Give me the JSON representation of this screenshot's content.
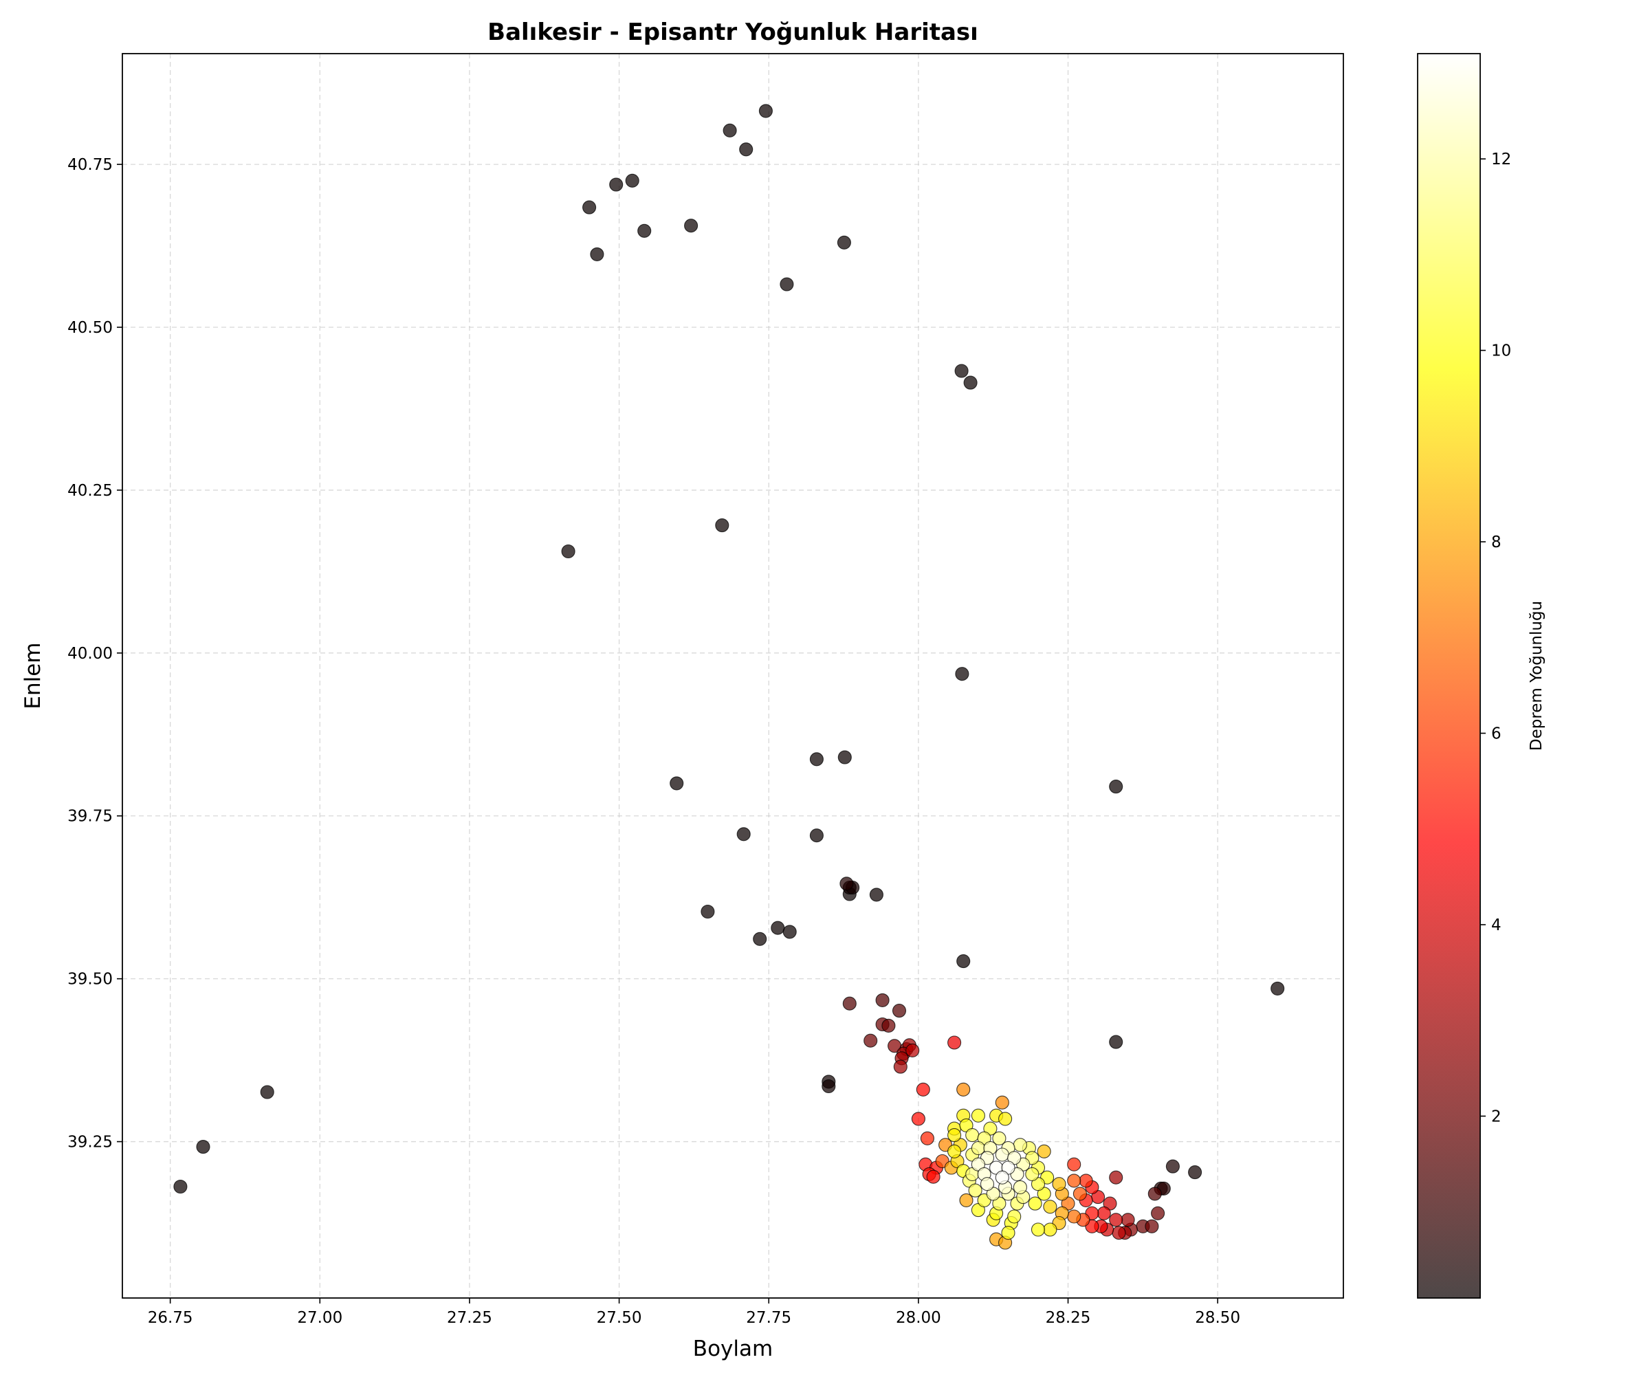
{
  "chart_data": {
    "type": "scatter",
    "title": "Balıkesir - Episantr Yoğunluk Haritası",
    "xlabel": "Boylam",
    "ylabel": "Enlem",
    "xlim": [
      26.67,
      28.71
    ],
    "ylim": [
      39.01,
      40.92
    ],
    "xticks": [
      "26.75",
      "27.00",
      "27.25",
      "27.50",
      "27.75",
      "28.00",
      "28.25",
      "28.50"
    ],
    "yticks": [
      "39.25",
      "39.50",
      "39.75",
      "40.00",
      "40.25",
      "40.50",
      "40.75"
    ],
    "grid": true,
    "colorbar": {
      "label": "Deprem Yoğunluğu",
      "min": 0.1,
      "max": 13.1,
      "ticks": [
        "2",
        "4",
        "6",
        "8",
        "10",
        "12"
      ],
      "colormap": "hot",
      "colors": [
        "#0a0000",
        "#d60000",
        "#ff7300",
        "#ffff00",
        "#ffffff"
      ]
    },
    "points": [
      [
        27.745,
        40.832,
        0.1
      ],
      [
        27.685,
        40.802,
        0.1
      ],
      [
        27.712,
        40.773,
        0.1
      ],
      [
        27.522,
        40.725,
        0.1
      ],
      [
        27.495,
        40.719,
        0.1
      ],
      [
        27.45,
        40.684,
        0.1
      ],
      [
        27.62,
        40.656,
        0.1
      ],
      [
        27.542,
        40.648,
        0.1
      ],
      [
        27.876,
        40.63,
        0.1
      ],
      [
        27.463,
        40.612,
        0.1
      ],
      [
        27.78,
        40.566,
        0.1
      ],
      [
        28.072,
        40.433,
        0.1
      ],
      [
        28.087,
        40.415,
        0.1
      ],
      [
        27.672,
        40.196,
        0.1
      ],
      [
        27.415,
        40.156,
        0.1
      ],
      [
        28.073,
        39.968,
        0.1
      ],
      [
        27.877,
        39.84,
        0.1
      ],
      [
        27.83,
        39.837,
        0.1
      ],
      [
        27.596,
        39.8,
        0.1
      ],
      [
        28.33,
        39.795,
        0.1
      ],
      [
        27.708,
        39.722,
        0.1
      ],
      [
        27.83,
        39.72,
        0.1
      ],
      [
        27.88,
        39.646,
        0.5
      ],
      [
        27.885,
        39.64,
        0.3
      ],
      [
        27.89,
        39.64,
        0.3
      ],
      [
        27.885,
        39.63,
        0.1
      ],
      [
        27.93,
        39.629,
        0.1
      ],
      [
        27.648,
        39.603,
        0.1
      ],
      [
        27.765,
        39.578,
        0.1
      ],
      [
        27.785,
        39.572,
        0.1
      ],
      [
        27.735,
        39.561,
        0.1
      ],
      [
        28.075,
        39.527,
        0.1
      ],
      [
        28.6,
        39.485,
        0.1
      ],
      [
        27.94,
        39.467,
        1.5
      ],
      [
        27.885,
        39.462,
        1.5
      ],
      [
        27.968,
        39.451,
        1.5
      ],
      [
        27.94,
        39.43,
        2.0
      ],
      [
        27.95,
        39.428,
        2.0
      ],
      [
        27.92,
        39.405,
        2.0
      ],
      [
        28.33,
        39.403,
        0.1
      ],
      [
        28.06,
        39.402,
        4.5
      ],
      [
        27.96,
        39.397,
        2.5
      ],
      [
        27.985,
        39.398,
        3.0
      ],
      [
        27.99,
        39.39,
        3.5
      ],
      [
        27.975,
        39.385,
        3.0
      ],
      [
        27.98,
        39.392,
        2.5
      ],
      [
        27.972,
        39.378,
        3.0
      ],
      [
        27.97,
        39.365,
        3.0
      ],
      [
        27.85,
        39.342,
        0.2
      ],
      [
        27.85,
        39.335,
        0.2
      ],
      [
        26.912,
        39.326,
        0.1
      ],
      [
        28.008,
        39.33,
        5.0
      ],
      [
        28.075,
        39.33,
        7.5
      ],
      [
        28.14,
        39.31,
        7.5
      ],
      [
        28.13,
        39.29,
        9.5
      ],
      [
        28.145,
        39.285,
        9.5
      ],
      [
        28.075,
        39.29,
        9.5
      ],
      [
        28.1,
        39.29,
        10
      ],
      [
        28.0,
        39.285,
        5.0
      ],
      [
        28.06,
        39.27,
        9.5
      ],
      [
        28.08,
        39.275,
        10
      ],
      [
        28.12,
        39.27,
        10.5
      ],
      [
        28.06,
        39.26,
        9.5
      ],
      [
        28.09,
        39.26,
        11
      ],
      [
        28.11,
        39.255,
        11
      ],
      [
        28.135,
        39.255,
        11.5
      ],
      [
        28.015,
        39.255,
        5.5
      ],
      [
        28.045,
        39.245,
        7.5
      ],
      [
        28.07,
        39.245,
        9
      ],
      [
        28.1,
        39.24,
        11.5
      ],
      [
        28.12,
        39.24,
        12
      ],
      [
        28.15,
        39.24,
        12
      ],
      [
        28.17,
        39.245,
        11.5
      ],
      [
        28.185,
        39.24,
        11
      ],
      [
        28.21,
        39.235,
        8.5
      ],
      [
        28.06,
        39.235,
        9.5
      ],
      [
        28.09,
        39.23,
        11
      ],
      [
        28.115,
        39.225,
        12.5
      ],
      [
        28.14,
        39.23,
        12.5
      ],
      [
        28.16,
        39.225,
        12.5
      ],
      [
        28.19,
        39.225,
        11
      ],
      [
        28.04,
        39.22,
        6.5
      ],
      [
        28.065,
        39.22,
        9
      ],
      [
        28.1,
        39.215,
        12.5
      ],
      [
        28.13,
        39.21,
        13
      ],
      [
        28.15,
        39.21,
        13
      ],
      [
        28.175,
        39.215,
        12
      ],
      [
        28.2,
        39.21,
        10.5
      ],
      [
        28.012,
        39.215,
        5.0
      ],
      [
        28.03,
        39.21,
        5.0
      ],
      [
        28.055,
        39.21,
        8
      ],
      [
        28.075,
        39.205,
        10
      ],
      [
        28.09,
        39.2,
        11.5
      ],
      [
        28.11,
        39.2,
        12.5
      ],
      [
        28.14,
        39.195,
        13
      ],
      [
        28.165,
        39.2,
        12.5
      ],
      [
        28.19,
        39.2,
        11
      ],
      [
        28.215,
        39.195,
        10
      ],
      [
        28.26,
        39.215,
        5.5
      ],
      [
        28.018,
        39.2,
        5.0
      ],
      [
        28.025,
        39.196,
        5.0
      ],
      [
        28.085,
        39.19,
        11
      ],
      [
        28.115,
        39.185,
        12.5
      ],
      [
        28.145,
        39.18,
        12.5
      ],
      [
        28.17,
        39.18,
        12
      ],
      [
        28.2,
        39.185,
        10.5
      ],
      [
        28.235,
        39.185,
        8.5
      ],
      [
        28.26,
        39.19,
        6.5
      ],
      [
        28.28,
        39.19,
        5.5
      ],
      [
        28.095,
        39.175,
        11
      ],
      [
        28.125,
        39.17,
        12
      ],
      [
        28.15,
        39.17,
        12
      ],
      [
        28.175,
        39.165,
        11.5
      ],
      [
        28.21,
        39.17,
        10
      ],
      [
        28.24,
        39.17,
        8
      ],
      [
        28.27,
        39.17,
        6.5
      ],
      [
        28.29,
        39.18,
        5.0
      ],
      [
        28.33,
        39.195,
        3.0
      ],
      [
        28.08,
        39.16,
        8
      ],
      [
        28.11,
        39.16,
        10.5
      ],
      [
        28.135,
        39.155,
        11
      ],
      [
        28.165,
        39.155,
        11
      ],
      [
        28.195,
        39.155,
        10
      ],
      [
        28.22,
        39.15,
        9
      ],
      [
        28.25,
        39.155,
        7
      ],
      [
        28.28,
        39.16,
        5.0
      ],
      [
        28.3,
        39.165,
        4.5
      ],
      [
        28.32,
        39.155,
        4
      ],
      [
        28.1,
        39.145,
        10
      ],
      [
        28.13,
        39.14,
        10
      ],
      [
        28.16,
        39.135,
        10.5
      ],
      [
        28.24,
        39.14,
        8
      ],
      [
        28.26,
        39.135,
        7
      ],
      [
        28.275,
        39.13,
        6
      ],
      [
        28.29,
        39.14,
        5.0
      ],
      [
        28.31,
        39.14,
        4.5
      ],
      [
        28.33,
        39.13,
        4
      ],
      [
        28.35,
        39.13,
        3
      ],
      [
        28.125,
        39.13,
        9.5
      ],
      [
        28.155,
        39.125,
        10
      ],
      [
        28.2,
        39.115,
        10
      ],
      [
        28.22,
        39.115,
        9.5
      ],
      [
        28.235,
        39.125,
        8.5
      ],
      [
        28.29,
        39.12,
        5.0
      ],
      [
        28.305,
        39.12,
        4.5
      ],
      [
        28.315,
        39.115,
        4
      ],
      [
        28.335,
        39.11,
        3.5
      ],
      [
        28.345,
        39.11,
        3
      ],
      [
        28.355,
        39.115,
        2.5
      ],
      [
        28.375,
        39.12,
        2.0
      ],
      [
        28.39,
        39.12,
        2.0
      ],
      [
        28.15,
        39.11,
        10
      ],
      [
        28.13,
        39.1,
        8
      ],
      [
        28.145,
        39.095,
        8
      ],
      [
        28.4,
        39.14,
        2.0
      ],
      [
        28.395,
        39.17,
        1.5
      ],
      [
        28.405,
        39.178,
        0.6
      ],
      [
        28.41,
        39.178,
        0.6
      ],
      [
        28.425,
        39.212,
        0.4
      ],
      [
        28.462,
        39.203,
        0.2
      ],
      [
        26.805,
        39.242,
        0.1
      ],
      [
        26.767,
        39.181,
        0.1
      ]
    ]
  }
}
